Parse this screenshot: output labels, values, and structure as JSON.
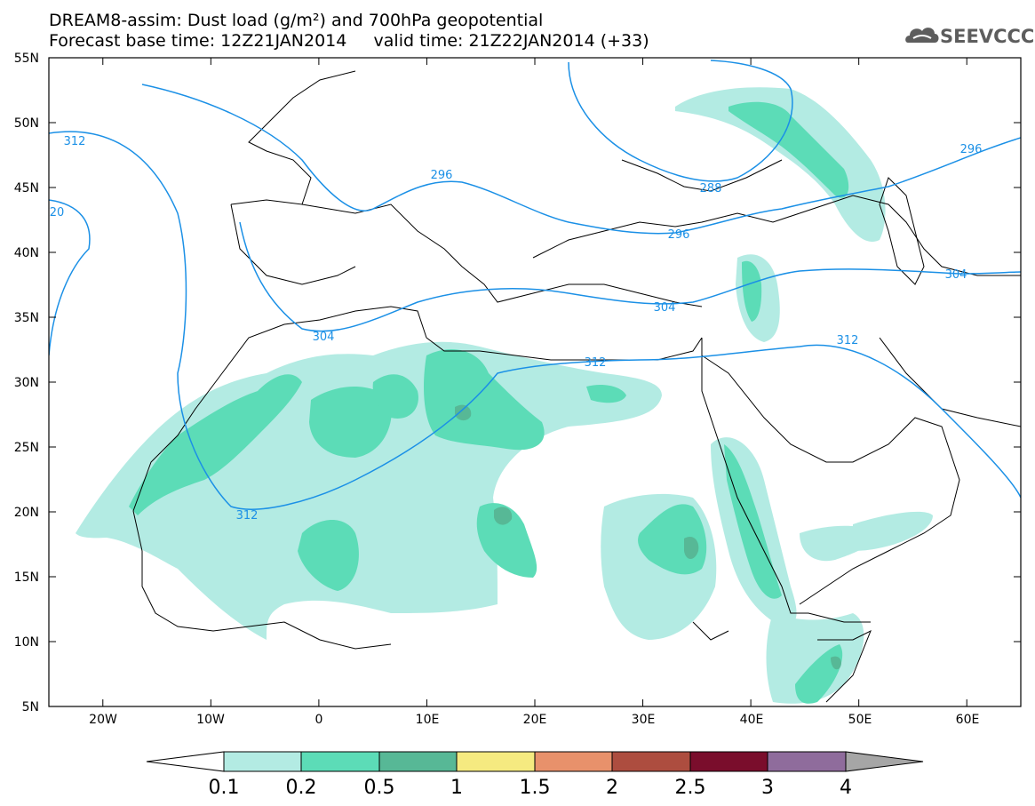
{
  "header": {
    "title_line1": "DREAM8-assim: Dust load (g/m²) and 700hPa geopotential",
    "title_line2": "Forecast base time: 12Z21JAN2014     valid time: 21Z22JAN2014 (+33)"
  },
  "logo": {
    "text": "SEEVCCC",
    "icon": "cloud-logo-icon"
  },
  "map": {
    "lat_range": [
      5,
      55
    ],
    "lon_range": [
      -25,
      65
    ],
    "lat_labels": [
      "55N",
      "50N",
      "45N",
      "40N",
      "35N",
      "30N",
      "25N",
      "20N",
      "15N",
      "10N",
      "5N"
    ],
    "lon_labels": [
      "20W",
      "10W",
      "0",
      "10E",
      "20E",
      "30E",
      "40E",
      "50E",
      "60E"
    ],
    "contour_color": "#1b90e6",
    "contour_labels": [
      "312",
      "20",
      "296",
      "288",
      "296",
      "304",
      "304",
      "312",
      "312",
      "296",
      "312",
      "304"
    ]
  },
  "colorbar": {
    "labels": [
      "0.1",
      "0.2",
      "0.5",
      "1",
      "1.5",
      "2",
      "2.5",
      "3",
      "4"
    ],
    "colors": [
      "#b3ebe3",
      "#5cdcb7",
      "#57b896",
      "#f5ea80",
      "#e8916b",
      "#ad4d3f",
      "#7a0d2c",
      "#8f6c9c",
      "#a6a6a6"
    ]
  }
}
